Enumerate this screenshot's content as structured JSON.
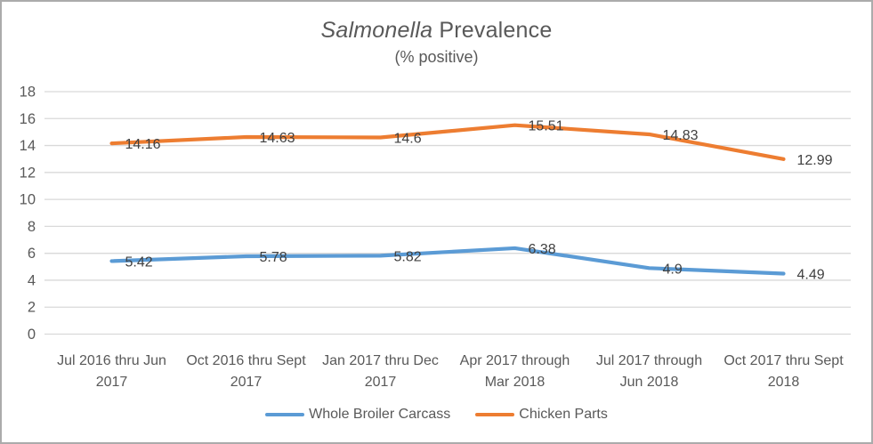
{
  "chart_data": {
    "type": "line",
    "title": {
      "italic_part": "Salmonella",
      "regular_part": " Prevalence"
    },
    "subtitle": "(% positive)",
    "categories": [
      "Jul 2016 thru Jun 2017",
      "Oct 2016 thru Sept 2017",
      "Jan 2017 thru Dec 2017",
      "Apr 2017 through Mar 2018",
      "Jul 2017 through Jun 2018",
      "Oct 2017 thru Sept 2018"
    ],
    "category_label_lines": [
      [
        "Jul 2016 thru Jun",
        "2017"
      ],
      [
        "Oct 2016 thru Sept",
        "2017"
      ],
      [
        "Jan 2017 thru Dec",
        "2017"
      ],
      [
        "Apr 2017 through",
        "Mar 2018"
      ],
      [
        "Jul 2017 through",
        "Jun 2018"
      ],
      [
        "Oct 2017 thru Sept",
        "2018"
      ]
    ],
    "yticks": [
      0,
      2,
      4,
      6,
      8,
      10,
      12,
      14,
      16,
      18
    ],
    "ylim": [
      0,
      18
    ],
    "grid": true,
    "legend_position": "bottom",
    "series": [
      {
        "name": "Whole Broiler Carcass",
        "color": "#5B9BD5",
        "values": [
          5.42,
          5.78,
          5.82,
          6.38,
          4.9,
          4.49
        ],
        "labels": [
          "5.42",
          "5.78",
          "5.82",
          "6.38",
          "4.9",
          "4.49"
        ]
      },
      {
        "name": "Chicken Parts",
        "color": "#ED7D31",
        "values": [
          14.16,
          14.63,
          14.6,
          15.51,
          14.83,
          12.99
        ],
        "labels": [
          "14.16",
          "14.63",
          "14.6",
          "15.51",
          "14.83",
          "12.99"
        ]
      }
    ],
    "colors": {
      "data_label": "#404040",
      "axis_text": "#595959",
      "gridline": "#D9D9D9"
    }
  }
}
